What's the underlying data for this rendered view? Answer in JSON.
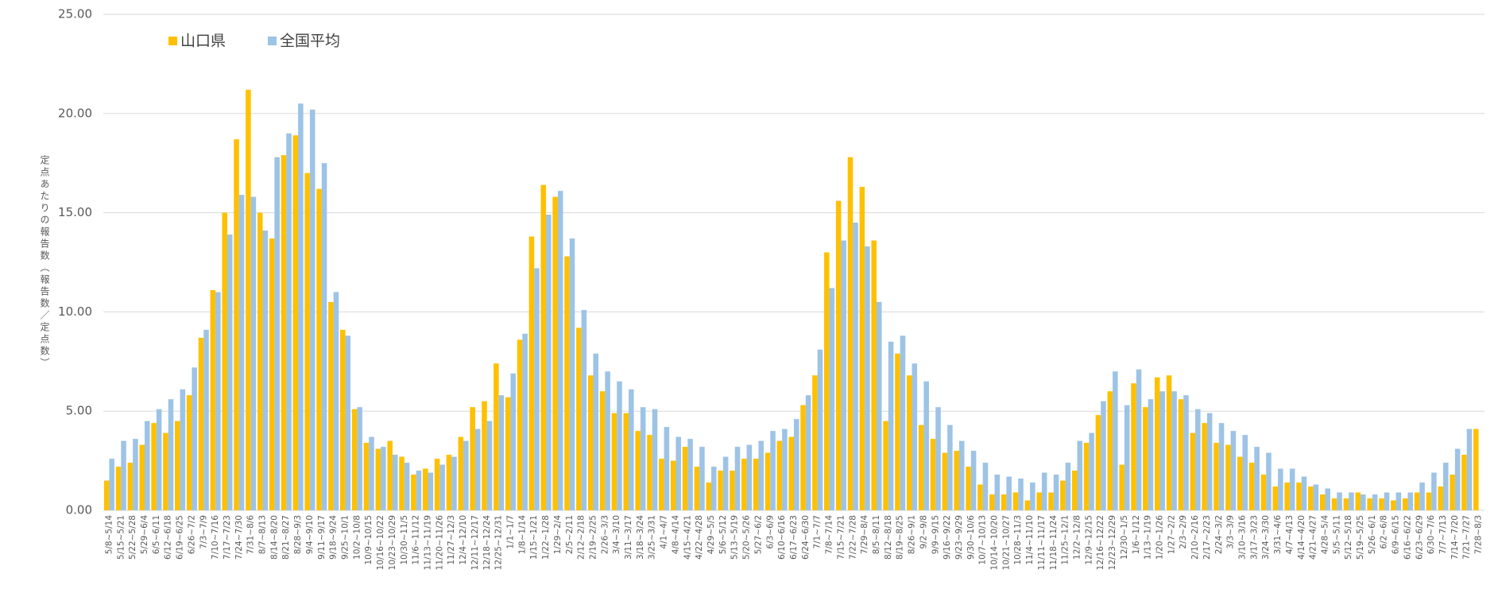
{
  "chart_data": {
    "type": "bar",
    "y_label": "定点あたりの報告数（報告数／定点数）",
    "categories": [
      "5/8~5/14",
      "5/15~5/21",
      "5/22~5/28",
      "5/29~6/4",
      "6/5~6/11",
      "6/12~6/18",
      "6/19~6/25",
      "6/26~7/2",
      "7/3~7/9",
      "7/10~7/16",
      "7/17~7/23",
      "7/24~7/30",
      "7/31~8/6",
      "8/7~8/13",
      "8/14~8/20",
      "8/21~8/27",
      "8/28~9/3",
      "9/4~9/10",
      "9/11~9/17",
      "9/18~9/24",
      "9/25~10/1",
      "10/2~10/8",
      "10/9~10/15",
      "10/16~10/22",
      "10/23~10/29",
      "10/30~11/5",
      "11/6~11/12",
      "11/13~11/19",
      "11/20~11/26",
      "11/27~12/3",
      "12/4~12/10",
      "12/11~12/17",
      "12/18~12/24",
      "12/25~12/31",
      "1/1~1/7",
      "1/8~1/14",
      "1/15~1/21",
      "1/22~1/28",
      "1/29~2/4",
      "2/5~2/11",
      "2/12~2/18",
      "2/19~2/25",
      "2/26~3/3",
      "3/4~3/10",
      "3/11~3/17",
      "3/18~3/24",
      "3/25~3/31",
      "4/1~4/7",
      "4/8~4/14",
      "4/15~4/21",
      "4/22~4/28",
      "4/29~5/5",
      "5/6~5/12",
      "5/13~5/19",
      "5/20~5/26",
      "5/27~6/2",
      "6/3~6/9",
      "6/10~6/16",
      "6/17~6/23",
      "6/24~6/30",
      "7/1~7/7",
      "7/8~7/14",
      "7/15~7/21",
      "7/22~7/28",
      "7/29~8/4",
      "8/5~8/11",
      "8/12~8/18",
      "8/19~8/25",
      "8/26~9/1",
      "9/2~9/8",
      "9/9~9/15",
      "9/16~9/22",
      "9/23~9/29",
      "9/30~10/6",
      "10/7~10/13",
      "10/14~10/20",
      "10/21~10/27",
      "10/28~11/3",
      "11/4~11/10",
      "11/11~11/17",
      "11/18~11/24",
      "11/25~12/1",
      "12/2~12/8",
      "12/9~12/15",
      "12/16~12/22",
      "12/23~12/29",
      "12/30~1/5",
      "1/6~1/12",
      "1/13~1/19",
      "1/20~1/26",
      "1/27~2/2",
      "2/3~2/9",
      "2/10~2/16",
      "2/17~2/23",
      "2/24~3/2",
      "3/3~3/9",
      "3/10~3/16",
      "3/17~3/23",
      "3/24~3/30",
      "3/31~4/6",
      "4/7~4/13",
      "4/14~4/20",
      "4/21~4/27",
      "4/28~5/4",
      "5/5~5/11",
      "5/12~5/18",
      "5/19~5/25",
      "5/26~6/1",
      "6/2~6/8",
      "6/9~6/15",
      "6/16~6/22",
      "6/23~6/29",
      "6/30~7/6",
      "7/7~7/13",
      "7/14~7/20",
      "7/21~7/27",
      "7/28~8/3"
    ],
    "series": [
      {
        "name": "山口県",
        "color": "#ffc000",
        "values": [
          1.5,
          2.2,
          2.4,
          3.3,
          4.4,
          3.9,
          4.5,
          5.8,
          8.7,
          11.1,
          15.0,
          18.7,
          21.2,
          15.0,
          13.7,
          17.9,
          18.9,
          17.0,
          16.2,
          10.5,
          9.1,
          5.1,
          3.4,
          3.1,
          3.5,
          2.7,
          1.8,
          2.1,
          2.6,
          2.8,
          3.7,
          5.2,
          5.5,
          7.4,
          5.7,
          8.6,
          13.8,
          16.4,
          15.8,
          12.8,
          9.2,
          6.8,
          6.0,
          4.9,
          4.9,
          4.0,
          3.8,
          2.6,
          2.5,
          3.2,
          2.2,
          1.4,
          2.0,
          2.0,
          2.6,
          2.6,
          2.9,
          3.5,
          3.7,
          5.3,
          6.8,
          13.0,
          15.6,
          17.8,
          16.3,
          13.6,
          4.5,
          7.9,
          6.8,
          4.3,
          3.6,
          2.9,
          3.0,
          2.2,
          1.3,
          0.8,
          0.8,
          0.9,
          0.5,
          0.9,
          0.9,
          1.5,
          2.0,
          3.4,
          4.8,
          6.0,
          2.3,
          6.4,
          5.2,
          6.7,
          6.8,
          5.6,
          3.9,
          4.4,
          3.4,
          3.3,
          2.7,
          2.4,
          1.8,
          1.2,
          1.4,
          1.4,
          1.2,
          0.8,
          0.6,
          0.6,
          0.9,
          0.6,
          0.6,
          0.5,
          0.6,
          0.9,
          0.9,
          1.2,
          1.8,
          2.8,
          4.1
        ]
      },
      {
        "name": "全国平均",
        "color": "#9dc3e6",
        "values": [
          2.6,
          3.5,
          3.6,
          4.5,
          5.1,
          5.6,
          6.1,
          7.2,
          9.1,
          11.0,
          13.9,
          15.9,
          15.8,
          14.1,
          17.8,
          19.0,
          20.5,
          20.2,
          17.5,
          11.0,
          8.8,
          5.2,
          3.7,
          3.2,
          2.8,
          2.4,
          2.0,
          1.9,
          2.3,
          2.7,
          3.5,
          4.1,
          4.5,
          5.8,
          6.9,
          8.9,
          12.2,
          14.9,
          16.1,
          13.7,
          10.1,
          7.9,
          7.0,
          6.5,
          6.1,
          5.2,
          5.1,
          4.2,
          3.7,
          3.6,
          3.2,
          2.2,
          2.7,
          3.2,
          3.3,
          3.5,
          4.0,
          4.1,
          4.6,
          5.8,
          8.1,
          11.2,
          13.6,
          14.5,
          13.3,
          10.5,
          8.5,
          8.8,
          7.4,
          6.5,
          5.2,
          4.3,
          3.5,
          3.0,
          2.4,
          1.8,
          1.7,
          1.6,
          1.4,
          1.9,
          1.8,
          2.4,
          3.5,
          3.9,
          5.5,
          7.0,
          5.3,
          7.1,
          5.6,
          6.0,
          6.0,
          5.8,
          5.1,
          4.9,
          4.4,
          4.0,
          3.8,
          3.2,
          2.9,
          2.1,
          2.1,
          1.7,
          1.3,
          1.1,
          0.9,
          0.9,
          0.8,
          0.8,
          0.9,
          0.9,
          0.9,
          1.4,
          1.9,
          2.4,
          3.1,
          4.1,
          null
        ]
      }
    ],
    "ylim": [
      0,
      25
    ],
    "yticks": [
      {
        "value": 0,
        "label": "0.00"
      },
      {
        "value": 5,
        "label": "5.00"
      },
      {
        "value": 10,
        "label": "10.00"
      },
      {
        "value": 15,
        "label": "15.00"
      },
      {
        "value": 20,
        "label": "20.00"
      },
      {
        "value": 25,
        "label": "25.00"
      }
    ],
    "grid": true,
    "legend": "upper left"
  }
}
